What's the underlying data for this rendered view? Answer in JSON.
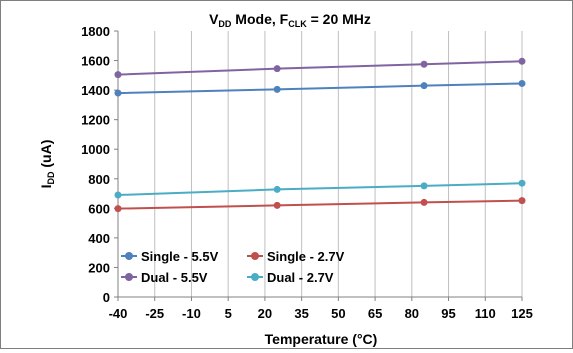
{
  "chart_data": {
    "type": "line",
    "title": {
      "prefix": "V",
      "prefix_sub": "DD",
      "middle": " Mode, F",
      "middle_sub": "CLK",
      "suffix": " = 20 MHz"
    },
    "xlabel": "Temperature (°C)",
    "ylabel": {
      "main": "I",
      "sub": "DD",
      "rest": " (uA)"
    },
    "xlim": [
      -40,
      125
    ],
    "ylim": [
      0,
      1800
    ],
    "x_ticks": [
      -40,
      -25,
      -10,
      5,
      20,
      35,
      50,
      65,
      80,
      95,
      110,
      125
    ],
    "y_ticks": [
      0,
      200,
      400,
      600,
      800,
      1000,
      1200,
      1400,
      1600,
      1800
    ],
    "grid": {
      "vertical": true,
      "horizontal": false
    },
    "legend_position": "bottom-left",
    "x": [
      -40,
      25,
      85,
      125
    ],
    "series": [
      {
        "name": "Single - 5.5V",
        "color": "#4f81bd",
        "values": [
          1380,
          1405,
          1430,
          1445
        ]
      },
      {
        "name": "Single - 2.7V",
        "color": "#c0504d",
        "values": [
          598,
          620,
          640,
          652
        ]
      },
      {
        "name": "Dual - 5.5V",
        "color": "#8064a2",
        "values": [
          1505,
          1545,
          1575,
          1595
        ]
      },
      {
        "name": "Dual - 2.7V",
        "color": "#4bacc6",
        "values": [
          690,
          728,
          752,
          770
        ]
      }
    ]
  }
}
